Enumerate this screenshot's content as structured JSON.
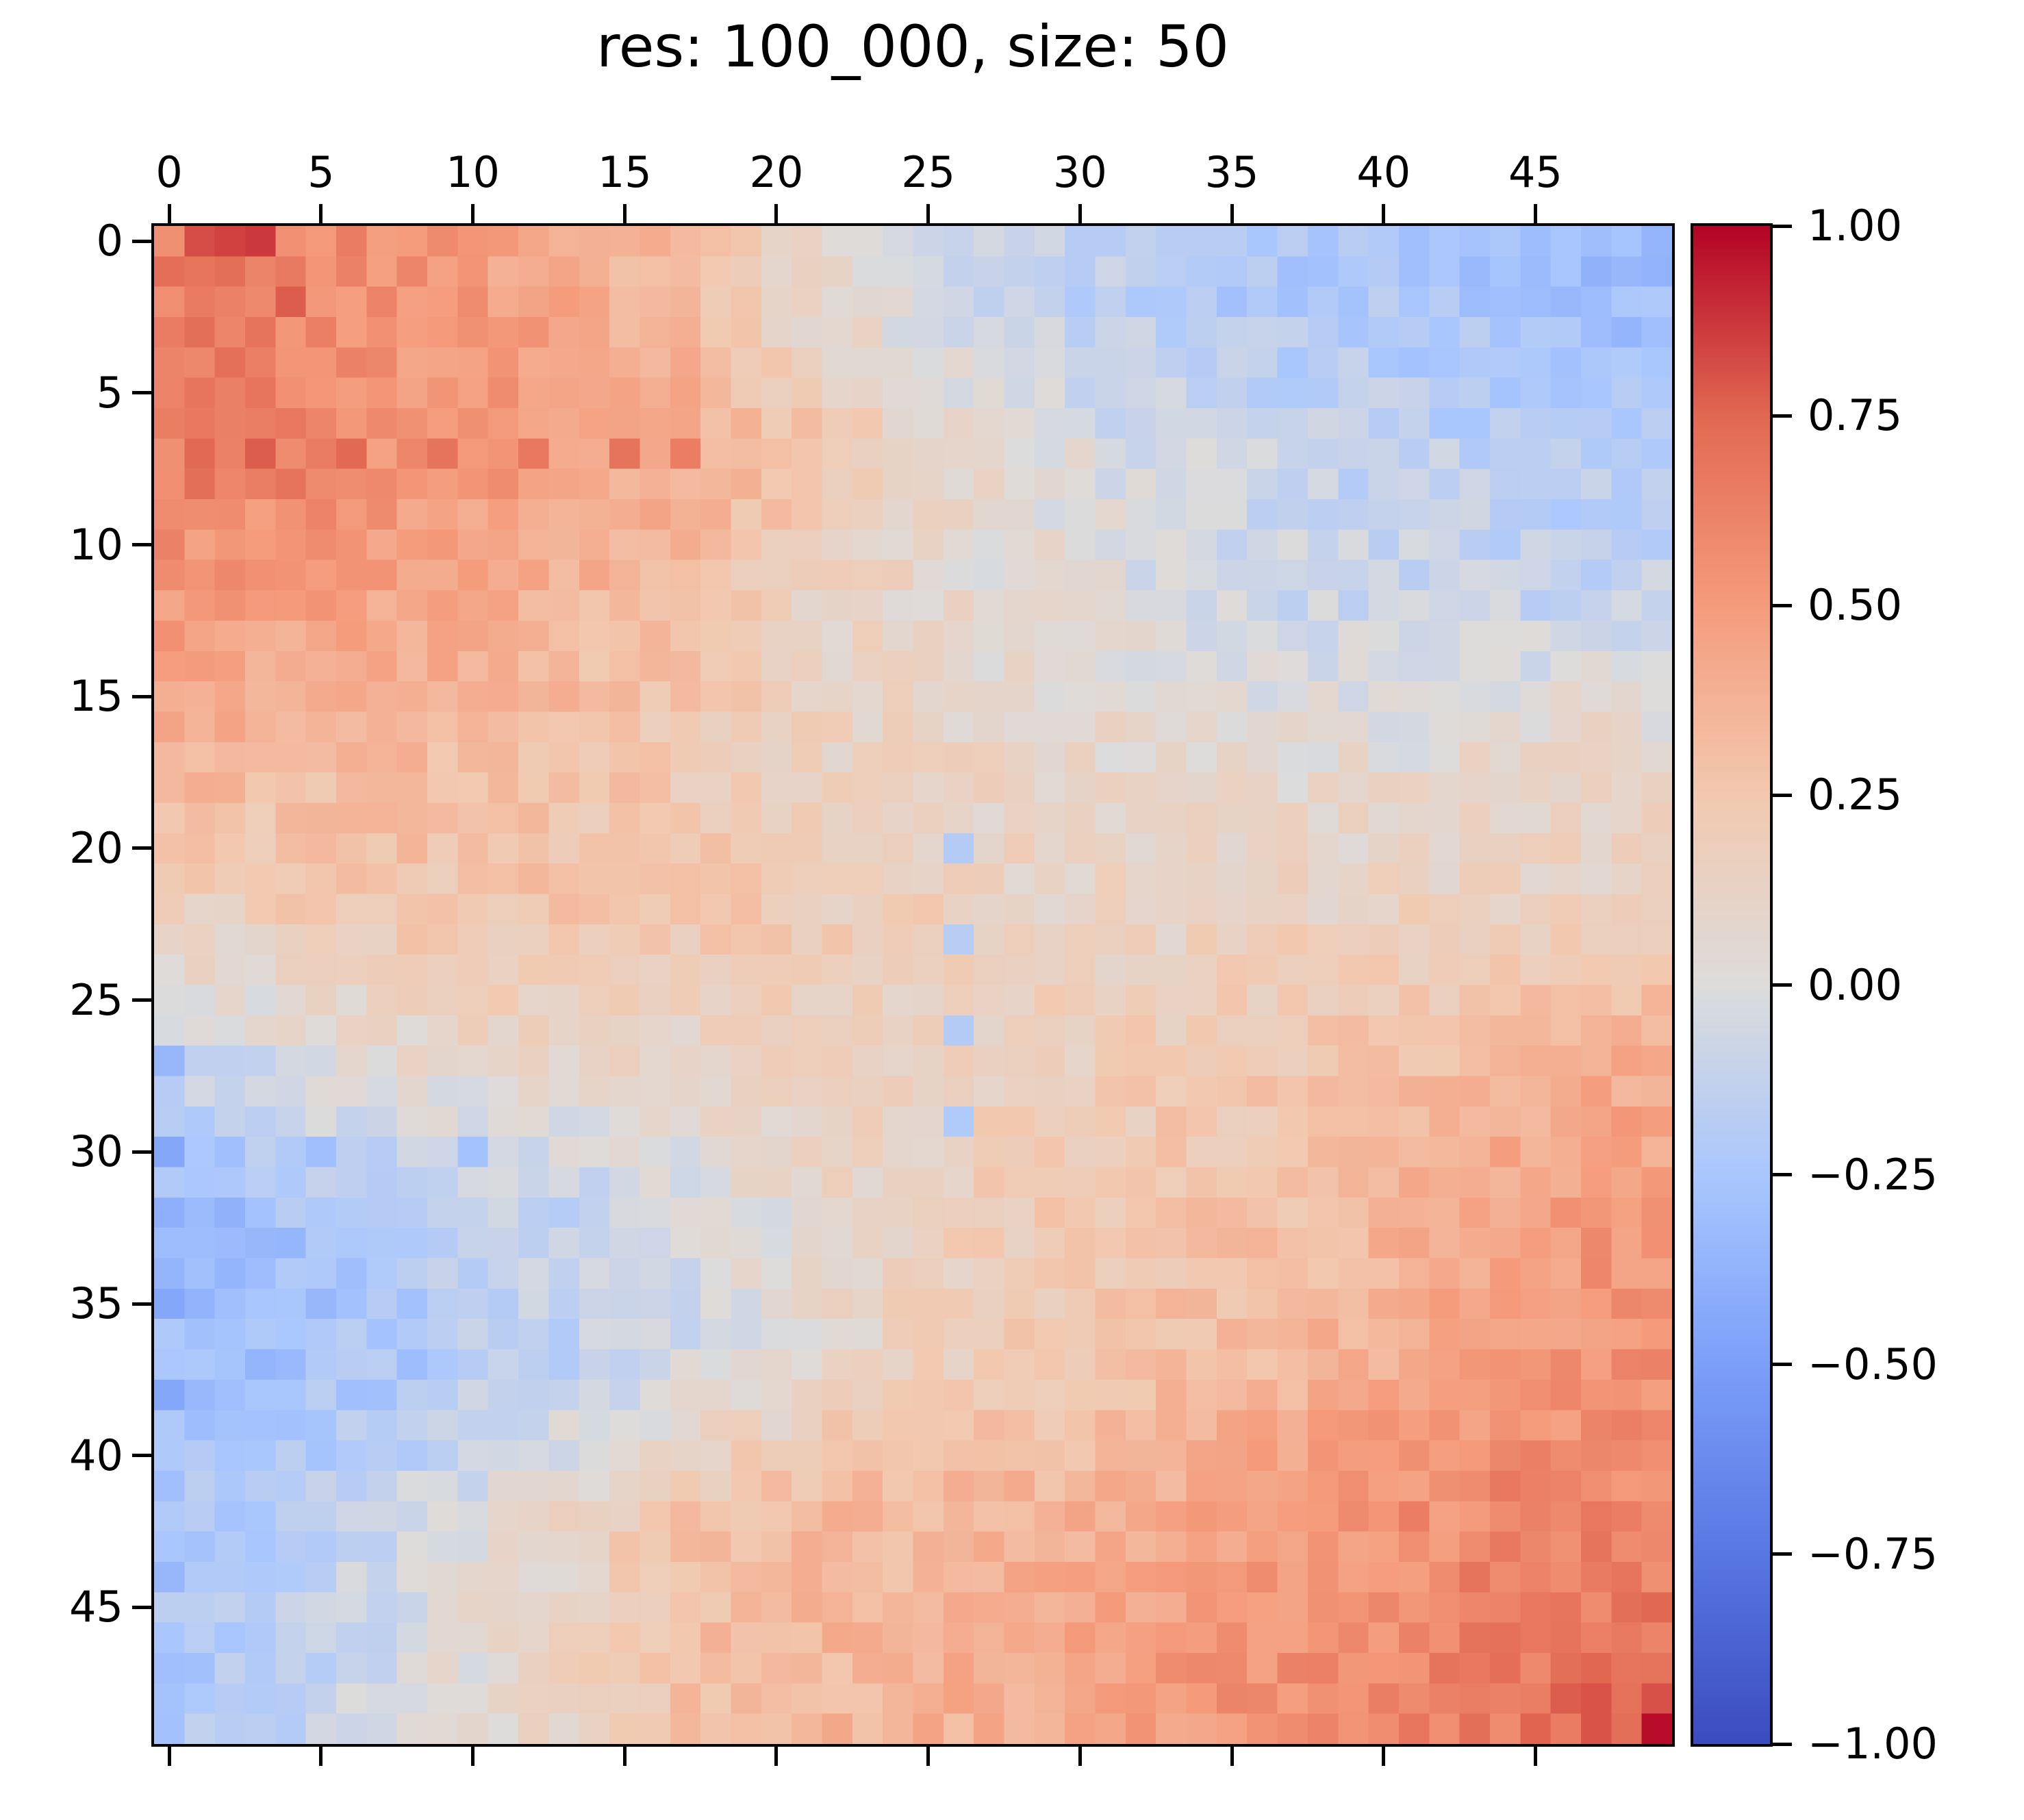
{
  "figure": {
    "title": "res: 100_000, size: 50"
  },
  "chart_data": {
    "type": "heatmap",
    "title": "res: 100_000, size: 50",
    "grid_size": 50,
    "value_range": [
      -1,
      1
    ],
    "grid": false,
    "legend_position": "right-colorbar",
    "x_axis": {
      "position": "top",
      "tick_values": [
        0,
        5,
        10,
        15,
        20,
        25,
        30,
        35,
        40,
        45
      ],
      "tick_labels": [
        "0",
        "5",
        "10",
        "15",
        "20",
        "25",
        "30",
        "35",
        "40",
        "45"
      ]
    },
    "y_axis": {
      "position": "left",
      "tick_values": [
        0,
        5,
        10,
        15,
        20,
        25,
        30,
        35,
        40,
        45
      ],
      "tick_labels": [
        "0",
        "5",
        "10",
        "15",
        "20",
        "25",
        "30",
        "35",
        "40",
        "45"
      ]
    },
    "colorbar": {
      "tick_values": [
        1,
        0.75,
        0.5,
        0.25,
        0,
        -0.25,
        -0.5,
        -0.75,
        -1
      ],
      "tick_labels": [
        "1.00",
        "0.75",
        "0.50",
        "0.25",
        "0.00",
        "−0.25",
        "−0.50",
        "−0.75",
        "−1.00"
      ]
    },
    "colormap": {
      "name": "coolwarm",
      "anchors": [
        {
          "t": -1.0,
          "color": "#3B4CC0"
        },
        {
          "t": -0.75,
          "color": "#5977E3"
        },
        {
          "t": -0.5,
          "color": "#7C9FF9"
        },
        {
          "t": -0.25,
          "color": "#AAC7FD"
        },
        {
          "t": 0.0,
          "color": "#DDDCDB"
        },
        {
          "t": 0.25,
          "color": "#F2C9B0"
        },
        {
          "t": 0.5,
          "color": "#F59C7D"
        },
        {
          "t": 0.75,
          "color": "#E26952"
        },
        {
          "t": 1.0,
          "color": "#B40426"
        }
      ]
    },
    "matrix_block_means_10x10": {
      "description": "Estimated mean correlation value of each 5x5 block of the 50x50 matrix, read from pixel colors; row-major from top-left. Full-resolution matrix is reconstructed by bilinear interpolation of these block means plus per-cell noise.",
      "block_size": 5,
      "values": [
        [
          0.65,
          0.55,
          0.45,
          0.3,
          0.05,
          -0.12,
          -0.18,
          -0.22,
          -0.25,
          -0.3
        ],
        [
          0.62,
          0.55,
          0.5,
          0.42,
          0.25,
          0.08,
          -0.05,
          -0.12,
          -0.15,
          -0.2
        ],
        [
          0.5,
          0.45,
          0.4,
          0.28,
          0.12,
          0.05,
          0.0,
          -0.08,
          -0.1,
          -0.12
        ],
        [
          0.35,
          0.32,
          0.3,
          0.22,
          0.15,
          0.1,
          0.08,
          0.05,
          0.05,
          0.1
        ],
        [
          0.18,
          0.25,
          0.28,
          0.25,
          0.2,
          0.15,
          0.12,
          0.15,
          0.15,
          0.15
        ],
        [
          -0.08,
          0.05,
          0.1,
          0.12,
          0.15,
          0.15,
          0.2,
          0.25,
          0.3,
          0.4
        ],
        [
          -0.3,
          -0.2,
          -0.12,
          -0.05,
          0.1,
          0.2,
          0.25,
          0.3,
          0.4,
          0.5
        ],
        [
          -0.32,
          -0.25,
          -0.15,
          -0.05,
          0.1,
          0.2,
          0.3,
          0.35,
          0.45,
          0.55
        ],
        [
          -0.2,
          -0.1,
          0.05,
          0.28,
          0.35,
          0.35,
          0.4,
          0.5,
          0.55,
          0.6
        ],
        [
          -0.22,
          -0.05,
          0.1,
          0.3,
          0.35,
          0.4,
          0.5,
          0.55,
          0.62,
          0.72
        ]
      ]
    },
    "noise_amplitude": 0.09,
    "notable_cells": [
      {
        "row": 0,
        "col": 1,
        "value": 0.82
      },
      {
        "row": 0,
        "col": 2,
        "value": 0.85
      },
      {
        "row": 0,
        "col": 3,
        "value": 0.87
      },
      {
        "row": 1,
        "col": 2,
        "value": 0.72
      },
      {
        "row": 2,
        "col": 4,
        "value": 0.78
      },
      {
        "row": 3,
        "col": 1,
        "value": 0.72
      },
      {
        "row": 7,
        "col": 1,
        "value": 0.75
      },
      {
        "row": 7,
        "col": 3,
        "value": 0.78
      },
      {
        "row": 7,
        "col": 6,
        "value": 0.75
      },
      {
        "row": 7,
        "col": 9,
        "value": 0.7
      },
      {
        "row": 7,
        "col": 12,
        "value": 0.68
      },
      {
        "row": 7,
        "col": 15,
        "value": 0.7
      },
      {
        "row": 7,
        "col": 17,
        "value": 0.65
      },
      {
        "row": 8,
        "col": 1,
        "value": 0.72
      },
      {
        "row": 8,
        "col": 4,
        "value": 0.7
      },
      {
        "row": 20,
        "col": 26,
        "value": -0.2
      },
      {
        "row": 23,
        "col": 26,
        "value": -0.18
      },
      {
        "row": 26,
        "col": 26,
        "value": -0.2
      },
      {
        "row": 29,
        "col": 26,
        "value": -0.22
      },
      {
        "row": 27,
        "col": 0,
        "value": -0.35
      },
      {
        "row": 30,
        "col": 0,
        "value": -0.45
      },
      {
        "row": 30,
        "col": 5,
        "value": -0.3
      },
      {
        "row": 30,
        "col": 10,
        "value": -0.28
      },
      {
        "row": 32,
        "col": 0,
        "value": -0.4
      },
      {
        "row": 35,
        "col": 0,
        "value": -0.45
      },
      {
        "row": 35,
        "col": 2,
        "value": -0.3
      },
      {
        "row": 35,
        "col": 5,
        "value": -0.35
      },
      {
        "row": 38,
        "col": 0,
        "value": -0.45
      },
      {
        "row": 41,
        "col": 0,
        "value": -0.3
      },
      {
        "row": 44,
        "col": 0,
        "value": -0.35
      },
      {
        "row": 47,
        "col": 0,
        "value": -0.3
      },
      {
        "row": 41,
        "col": 44,
        "value": 0.68
      },
      {
        "row": 42,
        "col": 41,
        "value": 0.65
      },
      {
        "row": 43,
        "col": 47,
        "value": 0.7
      },
      {
        "row": 44,
        "col": 43,
        "value": 0.7
      },
      {
        "row": 45,
        "col": 45,
        "value": 0.68
      },
      {
        "row": 46,
        "col": 46,
        "value": 0.7
      },
      {
        "row": 47,
        "col": 46,
        "value": 0.72
      },
      {
        "row": 48,
        "col": 46,
        "value": 0.78
      },
      {
        "row": 49,
        "col": 43,
        "value": 0.72
      },
      {
        "row": 49,
        "col": 48,
        "value": 0.72
      },
      {
        "row": 49,
        "col": 49,
        "value": 0.98
      }
    ]
  }
}
